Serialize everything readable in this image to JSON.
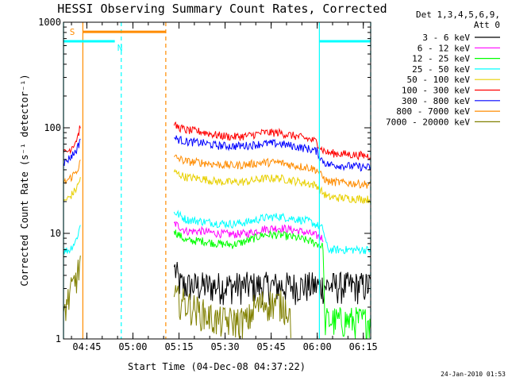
{
  "chart_data": {
    "type": "line",
    "title": "HESSI Observing Summary Count Rates, Corrected",
    "xlabel": "Start Time (04-Dec-08 04:37:22)",
    "ylabel": "Corrected Count Rate (s⁻¹ detector⁻¹)",
    "x_unit": "minutes after 04:37:22",
    "xlim": [
      0,
      100
    ],
    "ylim": [
      1,
      1000
    ],
    "y_scale": "log",
    "x_ticks": [
      {
        "value": 7.6,
        "label": "04:45"
      },
      {
        "value": 22.6,
        "label": "05:00"
      },
      {
        "value": 37.6,
        "label": "05:15"
      },
      {
        "value": 52.6,
        "label": "05:30"
      },
      {
        "value": 67.6,
        "label": "05:45"
      },
      {
        "value": 82.6,
        "label": "06:00"
      },
      {
        "value": 97.6,
        "label": "06:15"
      }
    ],
    "y_ticks": [
      {
        "value": 1,
        "label": "1"
      },
      {
        "value": 10,
        "label": "10"
      },
      {
        "value": 100,
        "label": "100"
      },
      {
        "value": 1000,
        "label": "1000"
      }
    ],
    "legend": {
      "header": [
        "Det 1,3,4,5,6,9,",
        "Att 0"
      ],
      "placement": "right"
    },
    "series": [
      {
        "name": "3 - 6 keV",
        "color": "#000000",
        "x": [
          36,
          38,
          40,
          45,
          50,
          55,
          60,
          65,
          70,
          75,
          80,
          82.5,
          86,
          90,
          95,
          100
        ],
        "y": [
          4.8,
          3.3,
          3.2,
          3.2,
          3.2,
          3.2,
          3.2,
          3.2,
          3.2,
          3.2,
          3.2,
          3.2,
          3.2,
          3.2,
          3.2,
          3.2
        ]
      },
      {
        "name": "6 - 12 keV",
        "color": "#ff00ff",
        "x": [
          36,
          40,
          45,
          50,
          55,
          60,
          65,
          70,
          75,
          80,
          82.5,
          84.5
        ],
        "y": [
          12.5,
          10.5,
          10.5,
          10,
          9.8,
          10,
          11,
          11.3,
          10.8,
          10,
          9.5,
          9
        ]
      },
      {
        "name": "12 - 25 keV",
        "color": "#00ff00",
        "x": [
          36,
          40,
          45,
          50,
          55,
          60,
          65,
          70,
          75,
          80,
          82.5,
          84.5,
          85,
          100
        ],
        "y": [
          10.5,
          8.5,
          8.5,
          8,
          7.8,
          8.5,
          9.7,
          9.7,
          9.2,
          8.5,
          8,
          7.5,
          1.5,
          1.5
        ]
      },
      {
        "name": "25 - 50 keV",
        "color": "#00ffff",
        "x": [
          0,
          2,
          4,
          5,
          5.5,
          36,
          40,
          45,
          50,
          55,
          60,
          65,
          70,
          75,
          80,
          82.5,
          84.5,
          86,
          100
        ],
        "y": [
          6.8,
          7,
          8.5,
          10.5,
          12,
          16,
          13.5,
          13,
          12.5,
          12.3,
          12.8,
          14,
          14.5,
          13.8,
          13,
          12,
          11,
          7,
          7
        ]
      },
      {
        "name": "50 - 100 keV",
        "color": "#e8d000",
        "x": [
          0,
          2,
          4,
          5,
          5.5,
          36,
          40,
          45,
          50,
          55,
          60,
          65,
          70,
          75,
          80,
          82.5,
          84,
          86,
          100
        ],
        "y": [
          20,
          22,
          26,
          30,
          34,
          38,
          34,
          33,
          31,
          30.5,
          31,
          33,
          33.5,
          31.5,
          29.5,
          28.5,
          25,
          22,
          21
        ]
      },
      {
        "name": "100 - 300 keV",
        "color": "#ff0000",
        "x": [
          0,
          2,
          4,
          5,
          5.5,
          36,
          40,
          45,
          50,
          55,
          60,
          65,
          70,
          75,
          80,
          82.5,
          84,
          86,
          100
        ],
        "y": [
          57,
          62,
          75,
          90,
          108,
          105,
          95,
          92,
          85,
          82,
          84,
          90,
          90,
          84,
          78,
          74,
          63,
          58,
          54
        ]
      },
      {
        "name": "300 - 800 keV",
        "color": "#0000ff",
        "x": [
          0,
          2,
          4,
          5,
          5.5,
          36,
          40,
          45,
          50,
          55,
          60,
          65,
          70,
          75,
          80,
          82.5,
          84,
          86,
          100
        ],
        "y": [
          46,
          52,
          60,
          70,
          82,
          80,
          74,
          72,
          68,
          67,
          68,
          71,
          71,
          67,
          63,
          60,
          50,
          45,
          42
        ]
      },
      {
        "name": "800 - 7000 keV",
        "color": "#ff8c00",
        "x": [
          0,
          2,
          4,
          5,
          5.5,
          36,
          40,
          45,
          50,
          55,
          60,
          65,
          70,
          75,
          80,
          82.5,
          84,
          86,
          100
        ],
        "y": [
          30,
          33,
          38,
          43,
          48,
          53,
          48,
          47,
          45,
          44,
          45,
          47,
          47,
          44,
          42,
          40,
          35,
          31,
          29
        ]
      },
      {
        "name": "7000 - 20000 keV",
        "color": "#808000",
        "x": [
          0,
          5,
          5.5,
          36,
          50,
          60,
          62,
          65,
          70,
          73,
          74,
          100
        ],
        "y": [
          1.8,
          4.5,
          6,
          2.5,
          1.5,
          1.5,
          2,
          2.2,
          2.2,
          2,
          1.5,
          1.5
        ]
      }
    ],
    "annotations": [
      {
        "label": "S",
        "color": "#ff8c00"
      },
      {
        "label": "N",
        "color": "#00ffff"
      }
    ],
    "markers": {
      "cyan_solid": [
        0,
        83.3
      ],
      "cyan_dashed": [
        18.8,
        100
      ],
      "orange_solid": [
        6.3
      ],
      "orange_dashed": [
        33.3
      ],
      "saa_bar": {
        "from": 6.3,
        "to": 33.3,
        "level": 810
      },
      "night_bars": [
        {
          "from": 0,
          "to": 16.7,
          "level": 660
        },
        {
          "from": 83.3,
          "to": 100,
          "level": 660
        }
      ],
      "s_at": 2,
      "n_at": 17.5
    }
  },
  "footer": {
    "timestamp": "24-Jan-2010 01:53"
  }
}
